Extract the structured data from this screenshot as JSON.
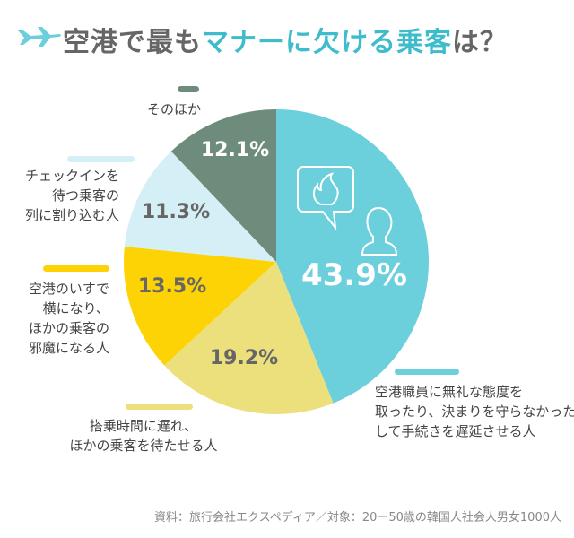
{
  "title": {
    "part1": "空港で最も",
    "part2": "マナーに欠ける乗客",
    "part3": "は？"
  },
  "chart_data": {
    "type": "pie",
    "start": "top",
    "direction": "clockwise",
    "slices": [
      {
        "label": "空港職員に無礼な態度を取ったり、決まりを守らなかったりして手続きを遅延させる人",
        "lines": [
          "空港職員に無礼な態度を",
          "取ったり、決まりを守らなかったり",
          "して手続きを遅延させる人"
        ],
        "value": 43.9,
        "text": "43.9%",
        "color": "#6ccfdc",
        "textColor": "#ffffff"
      },
      {
        "label": "搭乗時間に遅れ、ほかの乗客を待たせる人",
        "lines": [
          "搭乗時間に遅れ、",
          "ほかの乗客を待たせる人"
        ],
        "value": 19.2,
        "text": "19.2%",
        "color": "#ebe07c",
        "textColor": "#666666"
      },
      {
        "label": "空港のいすで横になり、ほかの乗客の邪魔になる人",
        "lines": [
          "空港のいすで",
          "横になり、",
          "ほかの乗客の",
          "邪魔になる人"
        ],
        "value": 13.5,
        "text": "13.5%",
        "color": "#fdd305",
        "textColor": "#666666"
      },
      {
        "label": "チェックインを待つ乗客の列に割り込む人",
        "lines": [
          "チェックインを",
          "待つ乗客の",
          "列に割り込む人"
        ],
        "value": 11.3,
        "text": "11.3%",
        "color": "#d4eff5",
        "textColor": "#666666"
      },
      {
        "label": "そのほか",
        "lines": [
          "そのほか"
        ],
        "value": 12.1,
        "text": "12.1%",
        "color": "#6e8c7b",
        "textColor": "#ffffff"
      }
    ]
  },
  "source": "資料：旅行会社エクスペディア／対象：20－50歳の韓国人社会人男女1000人"
}
